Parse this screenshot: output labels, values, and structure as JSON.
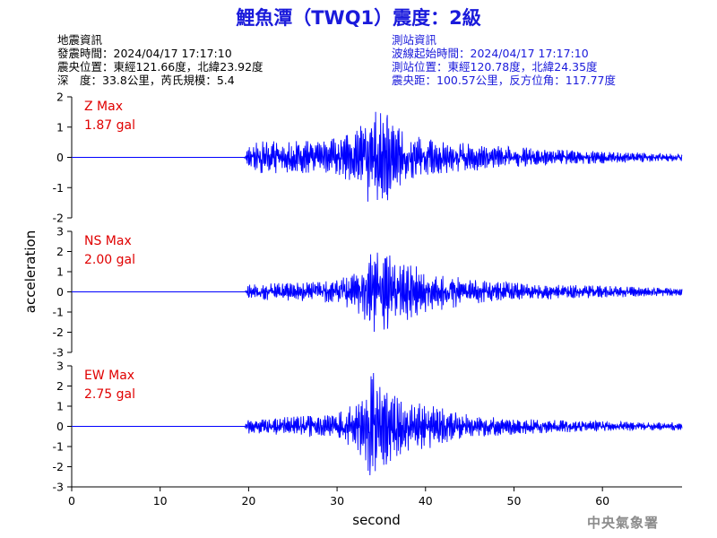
{
  "header": {
    "title": "鯉魚潭（TWQ1）震度：2級"
  },
  "quake_info": {
    "heading": "地震資訊",
    "origin_time": "發震時間：2024/04/17 17:17:10",
    "epicenter": "震央位置：東經121.66度，北緯23.92度",
    "depth_magnitude": "深　度：33.8公里，芮氏規模：5.4"
  },
  "station_info": {
    "heading": "測站資訊",
    "wave_start": "波線起始時間：2024/04/17 17:17:10",
    "station_location": "測站位置：東經120.78度，北緯24.35度",
    "distance_azimuth": "震央距：100.57公里，反方位角：117.77度"
  },
  "footer": {
    "organization": "中央氣象署"
  },
  "colors": {
    "title": "#1a1adb",
    "trace": "#0000ff",
    "max_label": "#e00000",
    "station_text": "#1a1adb"
  },
  "chart_data": {
    "type": "line",
    "xlabel": "second",
    "ylabel": "acceleration",
    "xlim": [
      0,
      69
    ],
    "x_ticks": [
      0,
      10,
      20,
      30,
      40,
      50,
      60
    ],
    "grid": false,
    "panels": [
      {
        "component": "Z",
        "max_label": "Z Max",
        "max_value": "1.87 gal",
        "ylim": [
          -2,
          2
        ],
        "y_ticks": [
          -2,
          -1,
          0,
          1,
          2
        ],
        "series": [
          {
            "x": [
              0,
              19.5,
              20,
              22,
              24,
              26,
              28,
              30,
              32,
              33,
              34,
              34.5,
              35,
              35.5,
              36,
              37,
              38,
              40,
              42,
              45,
              50,
              55,
              60,
              65,
              69
            ],
            "y": [
              0,
              0,
              0.45,
              0.55,
              0.5,
              0.55,
              0.5,
              0.65,
              0.8,
              1.15,
              1.8,
              1.87,
              1.8,
              1.7,
              1.3,
              1.0,
              0.8,
              0.6,
              0.55,
              0.45,
              0.35,
              0.25,
              0.2,
              0.15,
              0.12
            ]
          }
        ]
      },
      {
        "component": "NS",
        "max_label": "NS Max",
        "max_value": "2.00 gal",
        "ylim": [
          -3,
          3
        ],
        "y_ticks": [
          -3,
          -2,
          -1,
          0,
          1,
          2,
          3
        ],
        "series": [
          {
            "x": [
              0,
              19.5,
              20,
              22,
              24,
              26,
              28,
              30,
              32,
              33,
              34,
              35,
              36,
              37,
              38,
              40,
              42,
              45,
              50,
              55,
              60,
              65,
              69
            ],
            "y": [
              0,
              0,
              0.35,
              0.4,
              0.45,
              0.45,
              0.5,
              0.6,
              0.9,
              1.3,
              2.0,
              1.9,
              1.8,
              1.6,
              1.5,
              1.0,
              0.9,
              0.6,
              0.45,
              0.35,
              0.3,
              0.22,
              0.2
            ]
          }
        ]
      },
      {
        "component": "EW",
        "max_label": "EW Max",
        "max_value": "2.75 gal",
        "ylim": [
          -3,
          3
        ],
        "y_ticks": [
          -3,
          -2,
          -1,
          0,
          1,
          2,
          3
        ],
        "series": [
          {
            "x": [
              0,
              19.5,
              20,
              22,
              24,
              26,
              28,
              30,
              32,
              33,
              34,
              35,
              36,
              37,
              38,
              40,
              42,
              45,
              50,
              55,
              60,
              65,
              69
            ],
            "y": [
              0,
              0,
              0.35,
              0.45,
              0.45,
              0.5,
              0.55,
              0.6,
              1.2,
              1.6,
              2.75,
              2.0,
              1.8,
              1.5,
              1.2,
              1.1,
              1.0,
              0.55,
              0.4,
              0.3,
              0.25,
              0.2,
              0.2
            ]
          }
        ]
      }
    ]
  }
}
